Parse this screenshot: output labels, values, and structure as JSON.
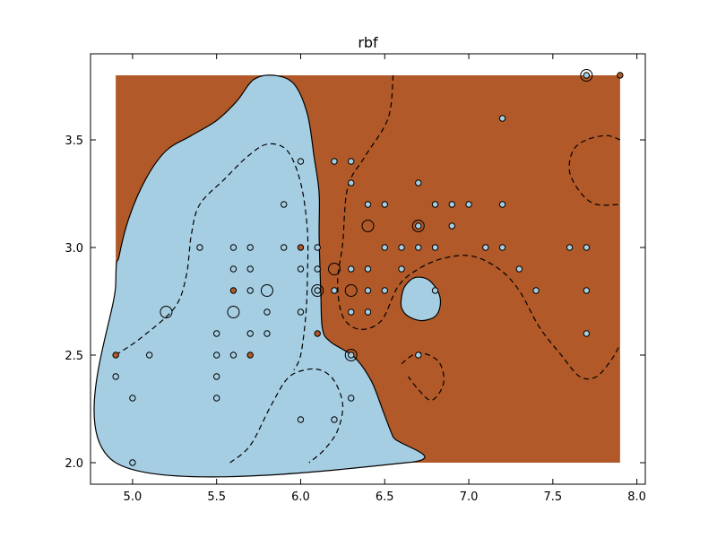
{
  "chart_data": {
    "type": "scatter",
    "title": "rbf",
    "xlabel": "",
    "ylabel": "",
    "xlim": [
      4.75,
      8.05
    ],
    "ylim": [
      1.9,
      3.9
    ],
    "xticks": [
      "5.0",
      "5.5",
      "6.0",
      "6.5",
      "7.0",
      "7.5",
      "8.0"
    ],
    "yticks": [
      "2.0",
      "2.5",
      "3.0",
      "3.5"
    ],
    "grid": false,
    "legend": "none",
    "region_x_range": [
      4.9,
      7.9
    ],
    "region_y_range": [
      2.0,
      3.8
    ],
    "colors": {
      "class_a": "#a6cee3",
      "class_b": "#b15928",
      "point_edge": "#000000"
    },
    "regions": [
      {
        "class": "class_a",
        "outline": [
          [
            4.9,
            2.83
          ],
          [
            4.92,
            2.96
          ],
          [
            4.98,
            3.14
          ],
          [
            5.08,
            3.32
          ],
          [
            5.2,
            3.45
          ],
          [
            5.35,
            3.52
          ],
          [
            5.5,
            3.59
          ],
          [
            5.62,
            3.68
          ],
          [
            5.72,
            3.78
          ],
          [
            5.84,
            3.8
          ],
          [
            5.96,
            3.76
          ],
          [
            6.04,
            3.62
          ],
          [
            6.08,
            3.42
          ],
          [
            6.11,
            3.25
          ],
          [
            6.11,
            3.05
          ],
          [
            6.12,
            2.78
          ],
          [
            6.13,
            2.62
          ],
          [
            6.18,
            2.56
          ],
          [
            6.32,
            2.49
          ],
          [
            6.42,
            2.38
          ],
          [
            6.49,
            2.24
          ],
          [
            6.55,
            2.12
          ],
          [
            6.63,
            2.0
          ],
          [
            4.9,
            2.0
          ]
        ]
      },
      {
        "class": "class_a",
        "outline": [
          [
            6.6,
            2.77
          ],
          [
            6.62,
            2.82
          ],
          [
            6.68,
            2.86
          ],
          [
            6.76,
            2.85
          ],
          [
            6.82,
            2.79
          ],
          [
            6.83,
            2.73
          ],
          [
            6.8,
            2.68
          ],
          [
            6.72,
            2.66
          ],
          [
            6.64,
            2.68
          ],
          [
            6.6,
            2.72
          ]
        ]
      }
    ],
    "margin_lines": [
      [
        [
          4.9,
          2.5
        ],
        [
          5.05,
          2.58
        ],
        [
          5.25,
          2.72
        ],
        [
          5.32,
          2.87
        ],
        [
          5.35,
          3.06
        ],
        [
          5.4,
          3.2
        ],
        [
          5.55,
          3.32
        ],
        [
          5.68,
          3.42
        ],
        [
          5.8,
          3.48
        ],
        [
          5.92,
          3.45
        ],
        [
          6.0,
          3.3
        ],
        [
          6.04,
          3.08
        ],
        [
          6.04,
          2.86
        ],
        [
          6.03,
          2.68
        ],
        [
          6.0,
          2.5
        ],
        [
          5.96,
          2.43
        ]
      ],
      [
        [
          6.55,
          3.8
        ],
        [
          6.52,
          3.6
        ],
        [
          6.38,
          3.42
        ],
        [
          6.28,
          3.28
        ],
        [
          6.25,
          3.02
        ],
        [
          6.22,
          2.84
        ],
        [
          6.25,
          2.68
        ],
        [
          6.35,
          2.62
        ],
        [
          6.48,
          2.66
        ],
        [
          6.58,
          2.82
        ],
        [
          6.7,
          2.9
        ],
        [
          6.85,
          2.95
        ],
        [
          7.02,
          2.96
        ],
        [
          7.18,
          2.9
        ],
        [
          7.3,
          2.8
        ],
        [
          7.42,
          2.63
        ],
        [
          7.55,
          2.5
        ],
        [
          7.66,
          2.4
        ],
        [
          7.76,
          2.4
        ],
        [
          7.85,
          2.48
        ],
        [
          7.9,
          2.55
        ]
      ],
      [
        [
          6.6,
          2.46
        ],
        [
          6.7,
          2.51
        ],
        [
          6.82,
          2.47
        ],
        [
          6.85,
          2.37
        ],
        [
          6.78,
          2.29
        ],
        [
          6.7,
          2.34
        ],
        [
          6.64,
          2.4
        ]
      ],
      [
        [
          7.9,
          3.5
        ],
        [
          7.82,
          3.52
        ],
        [
          7.7,
          3.5
        ],
        [
          7.62,
          3.45
        ],
        [
          7.6,
          3.35
        ],
        [
          7.67,
          3.25
        ],
        [
          7.76,
          3.2
        ],
        [
          7.9,
          3.2
        ]
      ],
      [
        [
          5.58,
          2.0
        ],
        [
          5.7,
          2.08
        ],
        [
          5.82,
          2.26
        ],
        [
          5.92,
          2.39
        ],
        [
          6.02,
          2.43
        ],
        [
          6.12,
          2.43
        ],
        [
          6.2,
          2.38
        ],
        [
          6.25,
          2.27
        ],
        [
          6.22,
          2.15
        ],
        [
          6.14,
          2.06
        ],
        [
          6.05,
          2.0
        ]
      ]
    ],
    "points_class_a": [
      [
        4.9,
        2.4
      ],
      [
        5.0,
        2.0
      ],
      [
        5.0,
        2.3
      ],
      [
        5.1,
        2.5
      ],
      [
        5.4,
        3.0
      ],
      [
        5.5,
        2.3
      ],
      [
        5.5,
        2.4
      ],
      [
        5.5,
        2.5
      ],
      [
        5.5,
        2.6
      ],
      [
        5.6,
        2.5
      ],
      [
        5.6,
        2.9
      ],
      [
        5.6,
        3.0
      ],
      [
        5.7,
        2.6
      ],
      [
        5.7,
        2.8
      ],
      [
        5.7,
        2.9
      ],
      [
        5.7,
        3.0
      ],
      [
        5.8,
        2.6
      ],
      [
        5.8,
        2.7
      ],
      [
        5.9,
        3.0
      ],
      [
        5.9,
        3.2
      ],
      [
        6.0,
        2.2
      ],
      [
        6.0,
        2.7
      ],
      [
        6.0,
        2.9
      ],
      [
        6.0,
        3.4
      ],
      [
        6.1,
        2.8
      ],
      [
        6.1,
        2.9
      ],
      [
        6.1,
        3.0
      ],
      [
        6.2,
        2.2
      ],
      [
        6.2,
        2.8
      ],
      [
        6.2,
        3.4
      ],
      [
        6.3,
        2.3
      ],
      [
        6.3,
        2.5
      ],
      [
        6.3,
        2.7
      ],
      [
        6.3,
        2.9
      ],
      [
        6.3,
        3.3
      ],
      [
        6.3,
        3.4
      ],
      [
        6.4,
        2.7
      ],
      [
        6.4,
        2.8
      ],
      [
        6.4,
        2.9
      ],
      [
        6.4,
        3.2
      ],
      [
        6.5,
        2.8
      ],
      [
        6.5,
        3.0
      ],
      [
        6.5,
        3.2
      ],
      [
        6.6,
        2.9
      ],
      [
        6.6,
        3.0
      ],
      [
        6.7,
        2.5
      ],
      [
        6.7,
        3.0
      ],
      [
        6.7,
        3.1
      ],
      [
        6.7,
        3.3
      ],
      [
        6.8,
        2.8
      ],
      [
        6.8,
        3.0
      ],
      [
        6.8,
        3.2
      ],
      [
        6.9,
        3.1
      ],
      [
        6.9,
        3.2
      ],
      [
        7.0,
        3.2
      ],
      [
        7.1,
        3.0
      ],
      [
        7.2,
        3.0
      ],
      [
        7.2,
        3.2
      ],
      [
        7.2,
        3.6
      ],
      [
        7.3,
        2.9
      ],
      [
        7.4,
        2.8
      ],
      [
        7.6,
        3.0
      ],
      [
        7.7,
        2.6
      ],
      [
        7.7,
        2.8
      ],
      [
        7.7,
        3.0
      ],
      [
        7.7,
        3.8
      ]
    ],
    "points_class_b": [
      [
        4.9,
        2.5
      ],
      [
        5.6,
        2.8
      ],
      [
        5.7,
        2.5
      ],
      [
        6.0,
        3.0
      ],
      [
        6.1,
        2.6
      ],
      [
        7.9,
        3.8
      ]
    ],
    "support_vectors": [
      [
        5.2,
        2.7
      ],
      [
        5.6,
        2.7
      ],
      [
        5.8,
        2.8
      ],
      [
        6.1,
        2.8
      ],
      [
        6.2,
        2.9
      ],
      [
        6.3,
        2.8
      ],
      [
        6.3,
        2.5
      ],
      [
        6.4,
        3.1
      ],
      [
        6.7,
        3.1
      ],
      [
        7.7,
        3.8
      ]
    ]
  }
}
